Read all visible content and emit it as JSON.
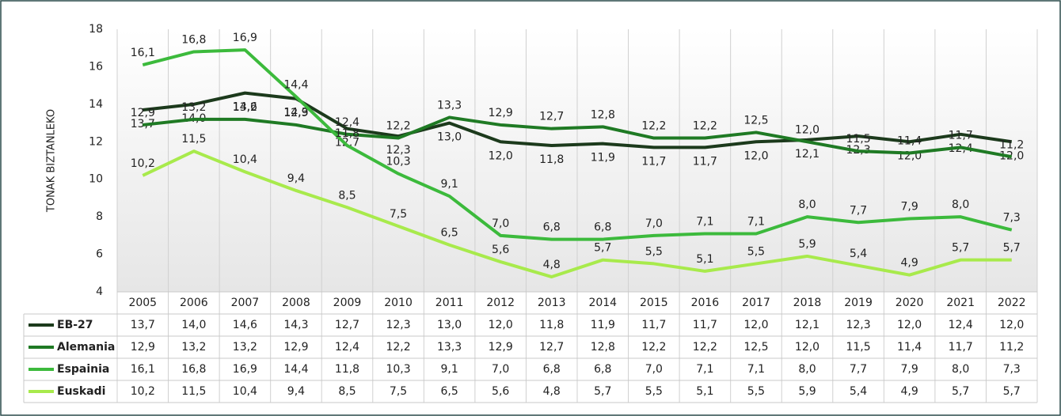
{
  "chart_data": {
    "type": "line",
    "y_axis_label": "TONAK BIZTANLEKO",
    "categories": [
      "2005",
      "2006",
      "2007",
      "2008",
      "2009",
      "2010",
      "2011",
      "2012",
      "2013",
      "2014",
      "2015",
      "2016",
      "2017",
      "2018",
      "2019",
      "2020",
      "2021",
      "2022"
    ],
    "ylim": [
      4,
      18
    ],
    "yticks": [
      4,
      6,
      8,
      10,
      12,
      14,
      16,
      18
    ],
    "grid": true,
    "series": [
      {
        "name": "EB-27",
        "color": "#1c3a1c",
        "values": [
          13.7,
          14.0,
          14.6,
          14.3,
          12.7,
          12.3,
          13.0,
          12.0,
          11.8,
          11.9,
          11.7,
          11.7,
          12.0,
          12.1,
          12.3,
          12.0,
          12.4,
          12.0
        ],
        "value_labels": [
          "13,7",
          "14,0",
          "14,6",
          "14,3",
          "12,7",
          "12,3",
          "13,0",
          "12,0",
          "11,8",
          "11,9",
          "11,7",
          "11,7",
          "12,0",
          "12,1",
          "12,3",
          "12,0",
          "12,4",
          "12,0"
        ]
      },
      {
        "name": "Alemania",
        "color": "#1f7a24",
        "values": [
          12.9,
          13.2,
          13.2,
          12.9,
          12.4,
          12.2,
          13.3,
          12.9,
          12.7,
          12.8,
          12.2,
          12.2,
          12.5,
          12.0,
          11.5,
          11.4,
          11.7,
          11.2
        ],
        "value_labels": [
          "12,9",
          "13,2",
          "13,2",
          "12,9",
          "12,4",
          "12,2",
          "13,3",
          "12,9",
          "12,7",
          "12,8",
          "12,2",
          "12,2",
          "12,5",
          "12,0",
          "11,5",
          "11,4",
          "11,7",
          "11,2"
        ]
      },
      {
        "name": "Espainia",
        "color": "#3cba3c",
        "values": [
          16.1,
          16.8,
          16.9,
          14.4,
          11.8,
          10.3,
          9.1,
          7.0,
          6.8,
          6.8,
          7.0,
          7.1,
          7.1,
          8.0,
          7.7,
          7.9,
          8.0,
          7.3
        ],
        "value_labels": [
          "16,1",
          "16,8",
          "16,9",
          "14,4",
          "11,8",
          "10,3",
          "9,1",
          "7,0",
          "6,8",
          "6,8",
          "7,0",
          "7,1",
          "7,1",
          "8,0",
          "7,7",
          "7,9",
          "8,0",
          "7,3"
        ]
      },
      {
        "name": "Euskadi",
        "color": "#a8ea4c",
        "values": [
          10.2,
          11.5,
          10.4,
          9.4,
          8.5,
          7.5,
          6.5,
          5.6,
          4.8,
          5.7,
          5.5,
          5.1,
          5.5,
          5.9,
          5.4,
          4.9,
          5.7,
          5.7
        ],
        "value_labels": [
          "10,2",
          "11,5",
          "10,4",
          "9,4",
          "8,5",
          "7,5",
          "6,5",
          "5,6",
          "4,8",
          "5,7",
          "5,5",
          "5,1",
          "5,5",
          "5,9",
          "5,4",
          "4,9",
          "5,7",
          "5,7"
        ]
      }
    ]
  }
}
